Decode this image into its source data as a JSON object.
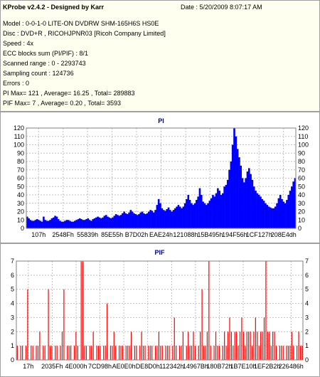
{
  "header": {
    "title": "KProbe v2.4.2 - Designed by Karr",
    "date": "Date : 5/20/2009 8:07:17 AM",
    "lines": [
      "Model : 0-0-1-0 LITE-ON DVDRW SHM-165H6S HS0E",
      "Disc : DVD+R , RICOHJPNR03 [Ricoh Company Limited]",
      "Speed : 4x",
      "ECC blocks sum (PI/PIF) : 8/1",
      "Scanned range : 0 - 2293743",
      "Sampling count : 124736",
      "Errors : 0",
      "PI Max= 121 , Average= 16.25 , Total= 289883",
      "PIF Max= 7 , Average= 0.20 , Total= 3593"
    ]
  },
  "colors": {
    "pi": "#0000ff",
    "pif": "#ff0000",
    "grid": "#c0c0c0",
    "title": "#00008b"
  },
  "chart_data": [
    {
      "type": "area",
      "title": "PI",
      "ylim": [
        0,
        120
      ],
      "yticks": [
        0,
        10,
        20,
        30,
        40,
        50,
        60,
        70,
        80,
        90,
        100,
        110,
        120
      ],
      "xtick_labels": [
        "107h",
        "2548Fh",
        "55839h",
        "85E55h",
        "B7D02h",
        "EAE24h",
        "121088h",
        "15B495h",
        "194F56h",
        "1CF127h",
        "208E4dh"
      ],
      "grid": true,
      "values": [
        14,
        12,
        10,
        9,
        9,
        10,
        11,
        10,
        9,
        8,
        14,
        10,
        9,
        9,
        10,
        12,
        13,
        15,
        14,
        11,
        9,
        8,
        8,
        9,
        10,
        10,
        9,
        8,
        8,
        9,
        10,
        11,
        12,
        11,
        10,
        10,
        11,
        12,
        10,
        9,
        11,
        12,
        13,
        14,
        13,
        12,
        13,
        15,
        16,
        14,
        13,
        12,
        13,
        15,
        17,
        16,
        15,
        16,
        18,
        20,
        18,
        17,
        19,
        22,
        20,
        18,
        17,
        16,
        17,
        19,
        20,
        18,
        17,
        18,
        20,
        22,
        21,
        19,
        22,
        28,
        35,
        30,
        24,
        22,
        21,
        23,
        25,
        22,
        20,
        22,
        24,
        26,
        28,
        26,
        24,
        26,
        30,
        35,
        40,
        34,
        30,
        28,
        30,
        34,
        38,
        48,
        40,
        32,
        30,
        28,
        30,
        33,
        36,
        40,
        38,
        42,
        48,
        45,
        40,
        42,
        50,
        52,
        58,
        70,
        80,
        100,
        121,
        110,
        95,
        85,
        75,
        60,
        55,
        60,
        68,
        72,
        65,
        58,
        50,
        45,
        42,
        40,
        38,
        35,
        33,
        30,
        28,
        26,
        25,
        24,
        24,
        26,
        30,
        36,
        40,
        35,
        32,
        30,
        34,
        40,
        45,
        50,
        56,
        60
      ]
    },
    {
      "type": "bar",
      "title": "PIF",
      "ylim": [
        0,
        7
      ],
      "yticks": [
        0,
        1,
        2,
        3,
        4,
        5,
        6,
        7
      ],
      "xtick_labels": [
        "17h",
        "2035Fh",
        "4E000h",
        "7CD98h",
        "AE0E0h",
        "DE8D0h",
        "112342h",
        "14967Bh",
        "180B72h",
        "1B7E10h",
        "1EF2B2h",
        "226486h"
      ],
      "grid": true,
      "values": [
        1,
        0,
        1,
        1,
        0,
        1,
        5,
        0,
        1,
        1,
        0,
        1,
        1,
        2,
        0,
        1,
        1,
        0,
        5,
        1,
        1,
        0,
        1,
        1,
        0,
        1,
        2,
        5,
        0,
        1,
        1,
        1,
        0,
        1,
        2,
        1,
        0,
        7,
        7,
        1,
        1,
        0,
        1,
        1,
        2,
        0,
        1,
        1,
        1,
        0,
        1,
        1,
        4,
        0,
        1,
        1,
        2,
        1,
        0,
        1,
        1,
        1,
        0,
        1,
        1,
        1,
        2,
        0,
        1,
        1,
        0,
        1,
        2,
        1,
        1,
        0,
        1,
        1,
        1,
        0,
        1,
        1,
        2,
        1,
        1,
        0,
        1,
        1,
        1,
        0,
        1,
        3,
        1,
        0,
        1,
        1,
        2,
        0,
        1,
        2,
        1,
        1,
        2,
        1,
        0,
        1,
        2,
        5,
        1,
        1,
        2,
        7,
        1,
        0,
        1,
        2,
        1,
        1,
        0,
        1,
        2,
        1,
        2,
        3,
        2,
        1,
        2,
        2,
        1,
        2,
        3,
        2,
        1,
        2,
        2,
        2,
        1,
        2,
        3,
        2,
        1,
        2,
        2,
        3,
        7,
        2,
        2,
        1,
        2,
        2,
        1,
        0,
        1,
        1,
        1,
        0,
        1,
        1,
        1,
        2,
        1,
        0,
        1,
        2,
        1,
        1
      ]
    }
  ]
}
